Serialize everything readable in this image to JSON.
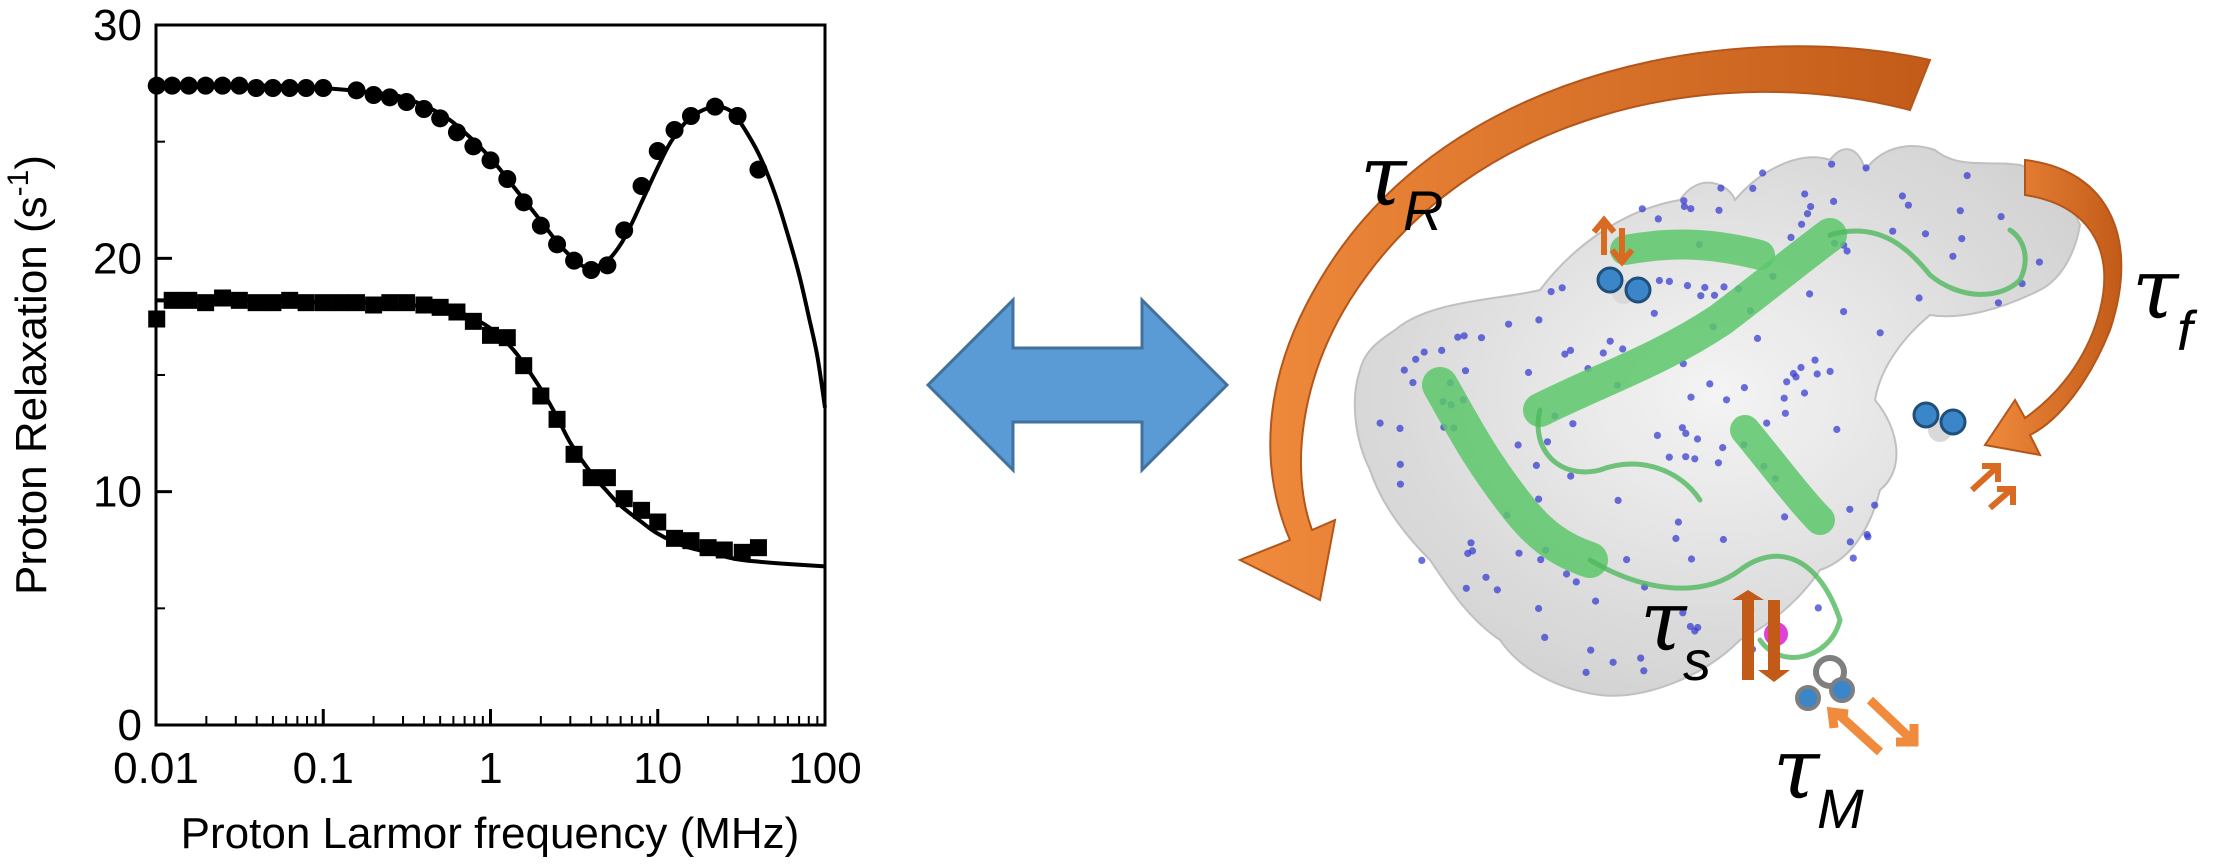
{
  "chart_data": {
    "type": "scatter",
    "xlabel": "Proton Larmor frequency (MHz)",
    "ylabel_main": "Proton Relaxation (s",
    "ylabel_sup": "-1",
    "ylabel_end": ")",
    "xscale": "log",
    "xlim": [
      0.01,
      100
    ],
    "ylim": [
      0,
      30
    ],
    "x_ticks": [
      {
        "value": 0.01,
        "label": "0.01"
      },
      {
        "value": 0.1,
        "label": "0.1"
      },
      {
        "value": 1,
        "label": "1"
      },
      {
        "value": 10,
        "label": "10"
      },
      {
        "value": 100,
        "label": "100"
      }
    ],
    "y_ticks": [
      {
        "value": 0,
        "label": "0"
      },
      {
        "value": 10,
        "label": "10"
      },
      {
        "value": 20,
        "label": "20"
      },
      {
        "value": 30,
        "label": "30"
      }
    ],
    "grid": false,
    "legend": "none",
    "series": [
      {
        "marker": "circle",
        "x": [
          0.0101,
          0.0125,
          0.0157,
          0.0198,
          0.025,
          0.0315,
          0.0397,
          0.05,
          0.063,
          0.079,
          0.1,
          0.158,
          0.2,
          0.25,
          0.315,
          0.4,
          0.5,
          0.63,
          0.79,
          1.0,
          1.26,
          1.58,
          2.0,
          2.5,
          3.16,
          4.0,
          5.0,
          6.3,
          8.0,
          10.0,
          12.6,
          15.8,
          22.0,
          30.0,
          40.0
        ],
        "y": [
          27.4,
          27.4,
          27.4,
          27.4,
          27.4,
          27.4,
          27.3,
          27.3,
          27.3,
          27.3,
          27.3,
          27.2,
          27.0,
          26.9,
          26.7,
          26.4,
          26.0,
          25.4,
          24.8,
          24.2,
          23.4,
          22.4,
          21.4,
          20.6,
          19.9,
          19.5,
          19.7,
          21.2,
          23.1,
          24.6,
          25.5,
          26.1,
          26.5,
          26.1,
          23.8
        ]
      },
      {
        "marker": "square",
        "x": [
          0.0101,
          0.0125,
          0.0157,
          0.0198,
          0.025,
          0.0315,
          0.0397,
          0.05,
          0.063,
          0.079,
          0.1,
          0.126,
          0.158,
          0.2,
          0.25,
          0.315,
          0.4,
          0.5,
          0.63,
          0.79,
          1.0,
          1.26,
          1.58,
          2.0,
          2.5,
          3.16,
          4.0,
          5.0,
          6.3,
          8.0,
          10.0,
          12.6,
          15.8,
          20.0,
          25.0,
          32.0,
          40.0
        ],
        "y": [
          17.4,
          18.2,
          18.2,
          18.1,
          18.3,
          18.2,
          18.1,
          18.1,
          18.2,
          18.1,
          18.1,
          18.1,
          18.1,
          18.0,
          18.1,
          18.1,
          18.0,
          17.9,
          17.7,
          17.3,
          16.7,
          16.6,
          15.4,
          14.1,
          13.1,
          11.6,
          10.6,
          10.6,
          9.7,
          9.2,
          8.7,
          8.0,
          7.9,
          7.6,
          7.5,
          7.4,
          7.6
        ]
      }
    ],
    "fit_curves": [
      {
        "x": [
          0.01,
          0.02,
          0.05,
          0.1,
          0.2,
          0.3,
          0.5,
          0.7,
          1.0,
          1.4,
          2.0,
          2.5,
          3.0,
          3.5,
          4.0,
          5.0,
          6.0,
          7.0,
          8.0,
          10.0,
          12.0,
          15.0,
          18.0,
          22.0,
          26.0,
          30.0,
          40.0,
          50.0,
          60.0,
          70.0,
          80.0,
          90.0,
          100.0
        ],
        "y": [
          27.4,
          27.4,
          27.4,
          27.3,
          27.1,
          26.9,
          26.2,
          25.4,
          24.3,
          23.0,
          21.6,
          20.7,
          20.1,
          19.7,
          19.6,
          19.9,
          20.6,
          21.5,
          22.4,
          23.9,
          25.0,
          25.9,
          26.3,
          26.5,
          26.4,
          26.0,
          24.5,
          22.8,
          21.0,
          19.3,
          17.5,
          15.8,
          13.6
        ]
      },
      {
        "x": [
          0.01,
          0.02,
          0.05,
          0.1,
          0.2,
          0.3,
          0.5,
          0.7,
          1.0,
          1.4,
          2.0,
          2.5,
          3.0,
          4.0,
          5.0,
          6.0,
          8.0,
          10.0,
          14.0,
          20.0,
          30.0,
          40.0,
          60.0,
          100.0
        ],
        "y": [
          18.2,
          18.2,
          18.2,
          18.1,
          18.1,
          18.0,
          17.9,
          17.6,
          17.0,
          16.0,
          14.4,
          13.2,
          12.1,
          10.8,
          10.0,
          9.4,
          8.7,
          8.2,
          7.7,
          7.4,
          7.1,
          7.0,
          6.9,
          6.8
        ]
      }
    ]
  },
  "illustration": {
    "labels": [
      {
        "id": "tau-R",
        "symbol": "τ",
        "subscript": "R"
      },
      {
        "id": "tau-f",
        "symbol": "τ",
        "subscript": "f"
      },
      {
        "id": "tau-s",
        "symbol": "τ",
        "subscript": "s"
      },
      {
        "id": "tau-M",
        "symbol": "τ",
        "subscript": "M"
      }
    ],
    "colors": {
      "arrow_orange": "#d86a22",
      "double_arrow_blue": "#5b9bd5",
      "helix_green": "#5cc86a",
      "surface_gray": "#d9d9d9",
      "metal_magenta": "#e040d8",
      "water_blue": "#3a86c8"
    }
  }
}
